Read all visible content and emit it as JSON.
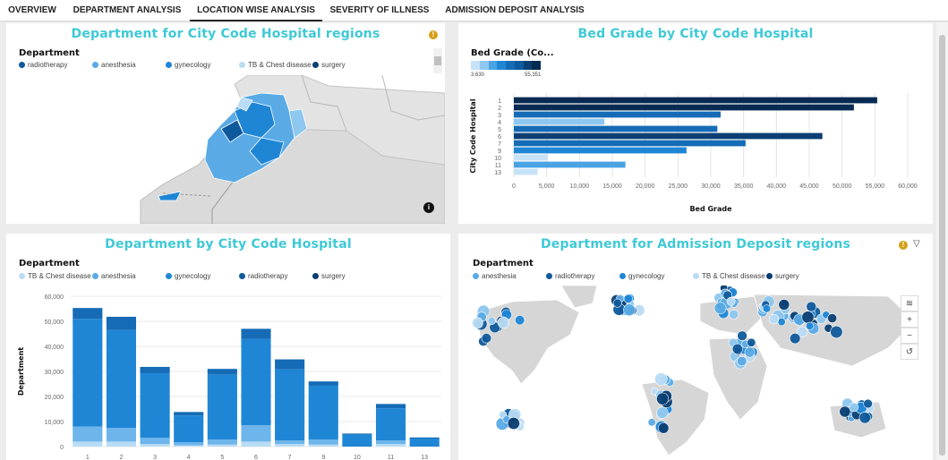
{
  "tabs": [
    "OVERVIEW",
    "DEPARTMENT ANALYSIS",
    "LOCATION WISE ANALYSIS",
    "SEVERITY OF ILLNESS",
    "ADMISSION DEPOSIT ANALYSIS"
  ],
  "active_tab": "LOCATION WISE ANALYSIS",
  "colors": {
    "title": "#3ec9d6",
    "radiotherapy": "#0f5a9c",
    "anesthesia": "#5aaae6",
    "gynecology": "#1f86d6",
    "tb_chest": "#b9dcf5",
    "surgery": "#0a3f73",
    "warning": "#d4a017"
  },
  "panel1": {
    "title": "Department for City Code Hospital regions",
    "legend_title": "Department",
    "legend": [
      "radiotherapy",
      "anesthesia",
      "gynecology",
      "TB & Chest disease",
      "surgery"
    ]
  },
  "panel2": {
    "title": "Bed Grade by City Code Hospital",
    "legend_title": "Bed Grade (Co...",
    "scale_min": "3,630",
    "scale_max": "55,351"
  },
  "panel3": {
    "title": "Department by City Code Hospital",
    "legend_title": "Department",
    "legend": [
      "TB & Chest disease",
      "anesthesia",
      "gynecology",
      "radiotherapy",
      "surgery"
    ]
  },
  "panel4": {
    "title": "Department for Admission Deposit regions",
    "legend_title": "Department",
    "legend": [
      "anesthesia",
      "radiotherapy",
      "gynecology",
      "TB & Chest disease",
      "surgery"
    ]
  },
  "chart_data": [
    {
      "type": "bar",
      "orientation": "horizontal",
      "title": "Bed Grade by City Code Hospital",
      "xlabel": "Bed Grade",
      "ylabel": "City Code Hospital",
      "categories": [
        "1",
        "2",
        "3",
        "4",
        "5",
        "6",
        "7",
        "9",
        "10",
        "11",
        "13"
      ],
      "values": [
        55351,
        51800,
        31500,
        13800,
        31000,
        47000,
        35300,
        26300,
        5200,
        17000,
        3630
      ],
      "xlim": [
        0,
        60000
      ],
      "xticks": [
        "0",
        "5,000",
        "10,000",
        "15,000",
        "20,000",
        "25,000",
        "30,000",
        "35,000",
        "40,000",
        "45,000",
        "50,000",
        "55,000",
        "60,000"
      ],
      "grid": true
    },
    {
      "type": "bar",
      "stacked": true,
      "title": "Department by City Code Hospital",
      "ylabel": "Department",
      "categories": [
        "1",
        "2",
        "3",
        "4",
        "5",
        "6",
        "7",
        "9",
        "10",
        "11",
        "13"
      ],
      "series": [
        {
          "name": "TB & Chest disease",
          "values": [
            2000,
            2000,
            1000,
            500,
            800,
            2000,
            1000,
            800,
            0,
            1000,
            0
          ]
        },
        {
          "name": "anesthesia",
          "values": [
            6000,
            5500,
            2500,
            1200,
            2000,
            6500,
            1500,
            2000,
            0,
            1500,
            0
          ]
        },
        {
          "name": "gynecology",
          "values": [
            43000,
            39000,
            25800,
            10700,
            26000,
            34500,
            28300,
            21500,
            4700,
            12800,
            3200
          ]
        },
        {
          "name": "radiotherapy",
          "values": [
            4300,
            5300,
            2500,
            1400,
            2200,
            4000,
            4000,
            1700,
            500,
            1700,
            430
          ]
        },
        {
          "name": "surgery",
          "values": [
            0,
            0,
            0,
            0,
            0,
            0,
            0,
            0,
            0,
            0,
            0
          ]
        }
      ],
      "ylim": [
        0,
        60000
      ],
      "yticks": [
        "0",
        "10,000",
        "20,000",
        "30,000",
        "40,000",
        "50,000",
        "60,000"
      ],
      "grid": true
    }
  ]
}
